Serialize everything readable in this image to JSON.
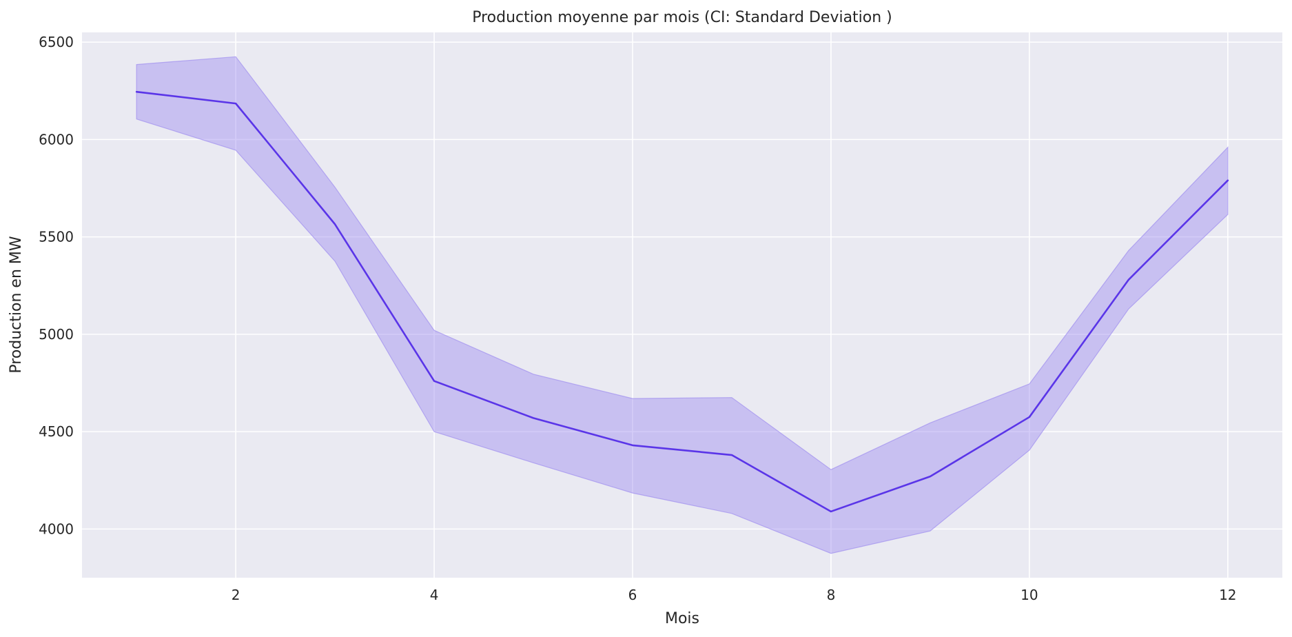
{
  "chart_data": {
    "type": "line",
    "title": "Production moyenne par mois (CI: Standard Deviation )",
    "xlabel": "Mois",
    "ylabel": "Production en MW",
    "xlim": [
      0.45,
      12.55
    ],
    "ylim": [
      3750,
      6550
    ],
    "xticks": [
      2,
      4,
      6,
      8,
      10,
      12
    ],
    "yticks": [
      4000,
      4500,
      5000,
      5500,
      6000,
      6500
    ],
    "grid": true,
    "colors": {
      "line": "#5a35e8",
      "band": "#a08ff0"
    },
    "series": [
      {
        "x": [
          1,
          2,
          3,
          4,
          5,
          6,
          7,
          8,
          9,
          10,
          11,
          12
        ],
        "y": [
          6245,
          6185,
          5565,
          4760,
          4570,
          4430,
          4380,
          4090,
          4270,
          4575,
          5280,
          5790
        ],
        "lower": [
          6105,
          5945,
          5375,
          4500,
          4340,
          4185,
          4080,
          3875,
          3990,
          4405,
          5130,
          5615
        ],
        "upper": [
          6385,
          6425,
          5755,
          5020,
          4795,
          4670,
          4675,
          4305,
          4545,
          4745,
          5430,
          5960
        ]
      }
    ]
  }
}
